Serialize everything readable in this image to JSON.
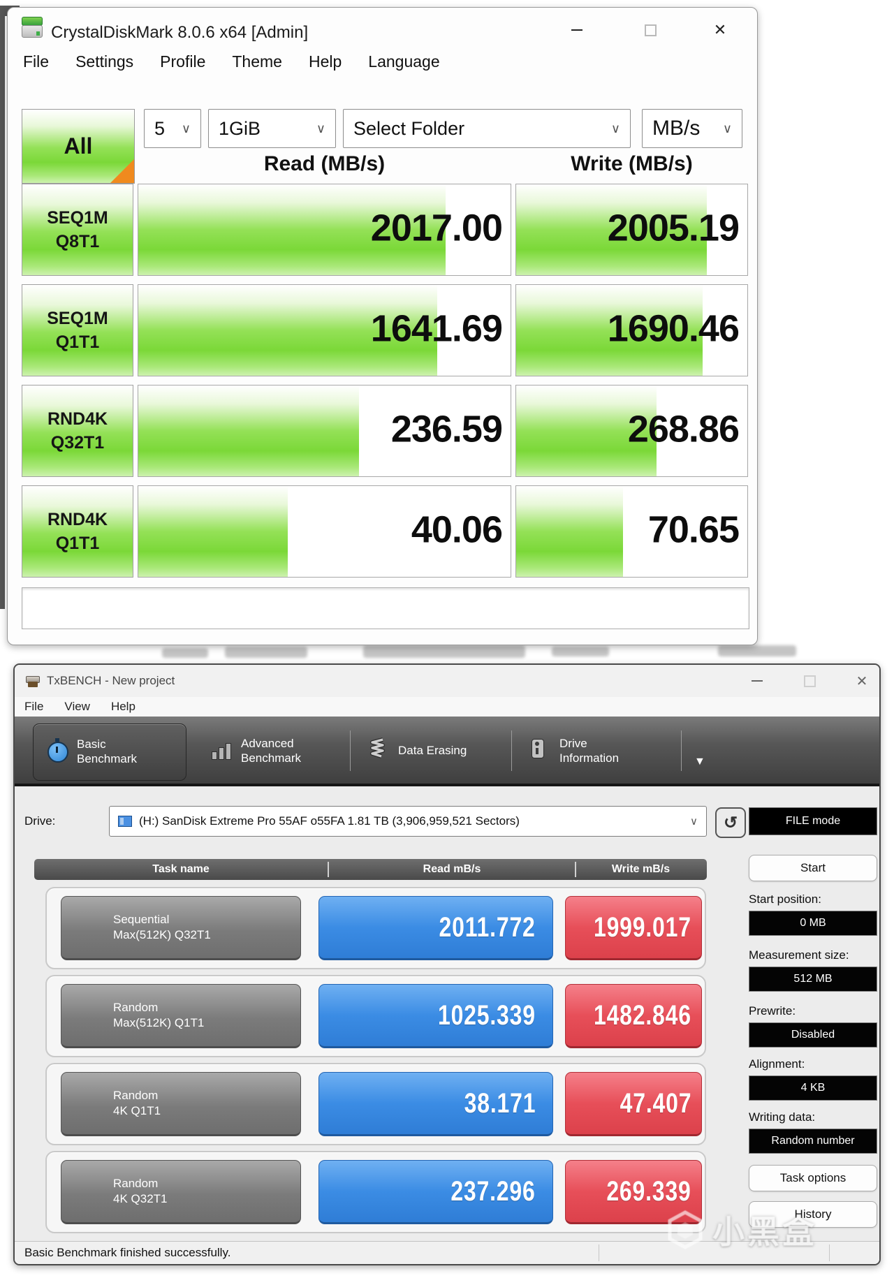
{
  "icons": {
    "chevron": "∨",
    "refresh": "↺",
    "toolbar_more": "▼",
    "close": "✕"
  },
  "cdm": {
    "title": "CrystalDiskMark 8.0.6 x64 [Admin]",
    "menu": [
      "File",
      "Settings",
      "Profile",
      "Theme",
      "Help",
      "Language"
    ],
    "controls": {
      "all_label": "All",
      "test_count": "5",
      "test_size": "1GiB",
      "target": "Select Folder",
      "unit": "MB/s"
    },
    "read_header": "Read (MB/s)",
    "write_header": "Write (MB/s)",
    "rows": [
      {
        "label1": "SEQ1M",
        "label2": "Q8T1",
        "read": "2017.00",
        "write": "2005.19"
      },
      {
        "label1": "SEQ1M",
        "label2": "Q1T1",
        "read": "1641.69",
        "write": "1690.46"
      },
      {
        "label1": "RND4K",
        "label2": "Q32T1",
        "read": "236.59",
        "write": "268.86"
      },
      {
        "label1": "RND4K",
        "label2": "Q1T1",
        "read": "40.06",
        "write": "70.65"
      }
    ],
    "accent_green": "#7bd838",
    "accent_orange": "#f08a1e"
  },
  "tx": {
    "title": "TxBENCH - New project",
    "menu": [
      "File",
      "View",
      "Help"
    ],
    "tabs": [
      {
        "label": "Basic Benchmark",
        "selected": true
      },
      {
        "label": "Advanced Benchmark",
        "selected": false
      },
      {
        "label": "Data Erasing",
        "selected": false
      },
      {
        "label": "Drive Information",
        "selected": false
      }
    ],
    "drive_label": "Drive:",
    "drive_value": "(H:) SanDisk Extreme Pro 55AF o55FA  1.81 TB (3,906,959,521 Sectors)",
    "file_mode": "FILE mode",
    "table": {
      "headers": [
        "Task name",
        "Read mB/s",
        "Write mB/s"
      ]
    },
    "rows": [
      {
        "name1": "Sequential",
        "name2": "Max(512K) Q32T1",
        "read": "2011.772",
        "write": "1999.017"
      },
      {
        "name1": "Random",
        "name2": "Max(512K) Q1T1",
        "read": "1025.339",
        "write": "1482.846"
      },
      {
        "name1": "Random",
        "name2": "4K Q1T1",
        "read": "38.171",
        "write": "47.407"
      },
      {
        "name1": "Random",
        "name2": "4K Q32T1",
        "read": "237.296",
        "write": "269.339"
      }
    ],
    "side": {
      "start": "Start",
      "fields": [
        {
          "label": "Start position:",
          "value": "0 MB"
        },
        {
          "label": "Measurement size:",
          "value": "512 MB"
        },
        {
          "label": "Prewrite:",
          "value": "Disabled"
        },
        {
          "label": "Alignment:",
          "value": "4 KB"
        },
        {
          "label": "Writing data:",
          "value": "Random number"
        }
      ],
      "task_options": "Task options",
      "history": "History"
    },
    "status": "Basic Benchmark finished successfully.",
    "accent_blue": "#3b8ce4",
    "accent_red": "#e74f59"
  },
  "watermark": {
    "text": "小黑盒"
  }
}
